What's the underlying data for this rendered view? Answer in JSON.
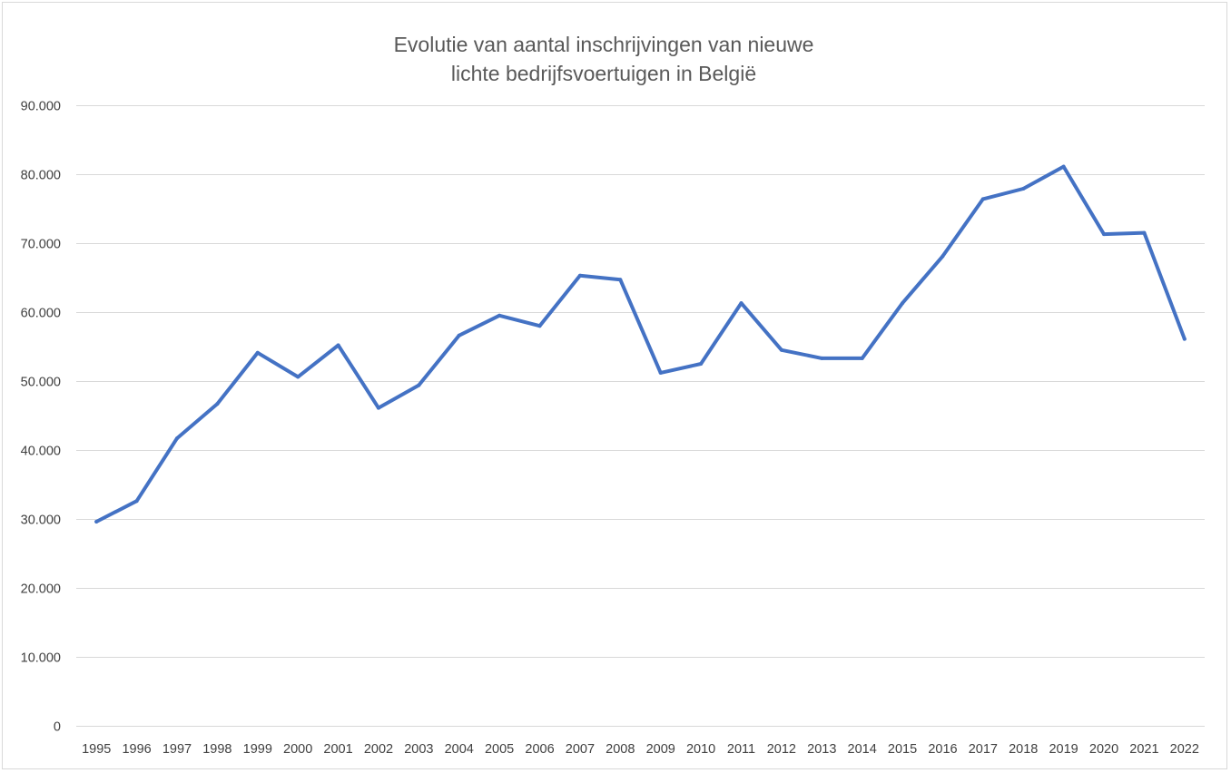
{
  "chart_data": {
    "type": "line",
    "title": "Evolutie van aantal inschrijvingen van nieuwe lichte bedrijfsvoertuigen in België",
    "title_lines": [
      "Evolutie van aantal inschrijvingen van nieuwe",
      "lichte bedrijfsvoertuigen in België"
    ],
    "xlabel": "",
    "ylabel": "",
    "categories": [
      "1995",
      "1996",
      "1997",
      "1998",
      "1999",
      "2000",
      "2001",
      "2002",
      "2003",
      "2004",
      "2005",
      "2006",
      "2007",
      "2008",
      "2009",
      "2010",
      "2011",
      "2012",
      "2013",
      "2014",
      "2015",
      "2016",
      "2017",
      "2018",
      "2019",
      "2020",
      "2021",
      "2022"
    ],
    "series": [
      {
        "values": [
          29600,
          32600,
          41700,
          46700,
          54100,
          50600,
          55200,
          46100,
          49400,
          56600,
          59500,
          58000,
          65300,
          64700,
          51200,
          52500,
          61300,
          54500,
          53300,
          53300,
          61300,
          68100,
          76400,
          77900,
          81100,
          71300,
          71500,
          56100
        ],
        "color": "#4472c4"
      }
    ],
    "ylim": [
      0,
      90000
    ],
    "yticks": [
      0,
      10000,
      20000,
      30000,
      40000,
      50000,
      60000,
      70000,
      80000,
      90000
    ],
    "ytick_labels": [
      "0",
      "10.000",
      "20.000",
      "30.000",
      "40.000",
      "50.000",
      "60.000",
      "70.000",
      "80.000",
      "90.000"
    ],
    "grid": true,
    "legend": "none",
    "gridline_color": "#d9d9d9"
  }
}
